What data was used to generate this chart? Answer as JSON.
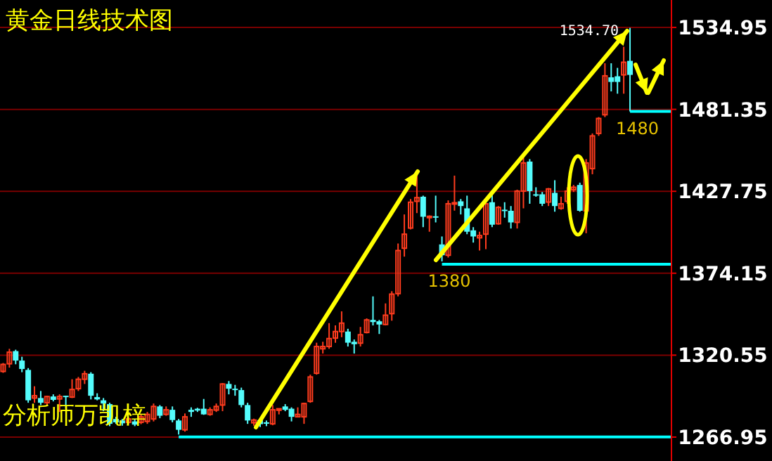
{
  "chart_data": {
    "type": "candlestick",
    "title": "黄金日线技术图",
    "categories": [
      null,
      null,
      null,
      null,
      null,
      null,
      null,
      null,
      null,
      null,
      null,
      null,
      null,
      null,
      null,
      null,
      null,
      null,
      null,
      null,
      null,
      null,
      null,
      null,
      null,
      null,
      null,
      null,
      null,
      null,
      null,
      null,
      null,
      null,
      null,
      null,
      null,
      null,
      null,
      null,
      null,
      null,
      null,
      null,
      null,
      null,
      null,
      null,
      null,
      null,
      null,
      null,
      null,
      null,
      null,
      null,
      null,
      null,
      null,
      null,
      null,
      null,
      null,
      null,
      null,
      null,
      null,
      null,
      null,
      null,
      null,
      null,
      null,
      null,
      null,
      null,
      null,
      null,
      null,
      null,
      null,
      null,
      null,
      null,
      null,
      null,
      null,
      null,
      null,
      null,
      null,
      null,
      null,
      null,
      null,
      null,
      null,
      null,
      null,
      null,
      null,
      null,
      null,
      null,
      null,
      null,
      null
    ],
    "ohlc": [
      [
        1309.9,
        1315.4,
        1309.0,
        1314.5
      ],
      [
        1314.9,
        1324.7,
        1312.4,
        1322.5
      ],
      [
        1323.2,
        1324.1,
        1314.6,
        1317.0
      ],
      [
        1317.0,
        1319.5,
        1309.4,
        1311.5
      ],
      [
        1310.9,
        1312.1,
        1289.4,
        1291.0
      ],
      [
        1292.5,
        1300.2,
        1289.4,
        1294.0
      ],
      [
        1292.5,
        1297.1,
        1287.9,
        1289.4
      ],
      [
        1289.4,
        1294.0,
        1287.9,
        1293.5
      ],
      [
        1293.5,
        1294.9,
        1290.3,
        1291.3
      ],
      [
        1291.9,
        1294.9,
        1283.4,
        1293.5
      ],
      [
        1294.0,
        1294.0,
        1285.5,
        1293.1
      ],
      [
        1293.1,
        1304.8,
        1292.5,
        1298.1
      ],
      [
        1298.6,
        1306.3,
        1297.1,
        1304.8
      ],
      [
        1304.8,
        1310.3,
        1301.7,
        1308.4
      ],
      [
        1308.4,
        1309.4,
        1291.6,
        1294.0
      ],
      [
        1293.1,
        1295.6,
        1291.0,
        1291.6
      ],
      [
        1291.0,
        1292.5,
        1283.9,
        1288.9
      ],
      [
        1288.5,
        1289.4,
        1274.1,
        1275.6
      ],
      [
        1278.8,
        1280.2,
        1275.6,
        1276.6
      ],
      [
        1277.8,
        1278.8,
        1274.4,
        1276.0
      ],
      [
        1276.6,
        1280.0,
        1275.4,
        1278.8
      ],
      [
        1277.2,
        1278.8,
        1274.1,
        1275.1
      ],
      [
        1276.6,
        1281.8,
        1275.4,
        1280.2
      ],
      [
        1277.2,
        1283.4,
        1275.6,
        1281.8
      ],
      [
        1278.8,
        1288.9,
        1277.2,
        1287.0
      ],
      [
        1287.0,
        1287.9,
        1279.3,
        1280.9
      ],
      [
        1281.8,
        1287.0,
        1280.9,
        1284.8
      ],
      [
        1284.8,
        1287.0,
        1276.6,
        1278.1
      ],
      [
        1277.8,
        1278.8,
        1268.6,
        1271.7
      ],
      [
        1271.7,
        1282.4,
        1270.5,
        1280.2
      ],
      [
        1284.8,
        1286.4,
        1280.2,
        1283.4
      ],
      [
        1285.5,
        1286.1,
        1283.4,
        1284.3
      ],
      [
        1285.5,
        1291.9,
        1281.5,
        1281.8
      ],
      [
        1281.8,
        1286.4,
        1280.9,
        1284.8
      ],
      [
        1284.6,
        1288.9,
        1283.4,
        1287.0
      ],
      [
        1287.9,
        1302.3,
        1283.9,
        1301.7
      ],
      [
        1301.7,
        1303.6,
        1294.9,
        1298.6
      ],
      [
        1298.6,
        1301.1,
        1294.0,
        1298.1
      ],
      [
        1297.7,
        1299.3,
        1286.4,
        1287.9
      ],
      [
        1287.9,
        1289.4,
        1275.6,
        1277.8
      ],
      [
        1276.3,
        1279.0,
        1274.4,
        1278.1
      ],
      [
        1278.1,
        1278.8,
        1273.5,
        1275.4
      ],
      [
        1276.6,
        1277.8,
        1274.1,
        1276.0
      ],
      [
        1275.6,
        1287.9,
        1274.7,
        1284.8
      ],
      [
        1284.5,
        1285.5,
        1281.8,
        1285.5
      ],
      [
        1287.0,
        1288.5,
        1283.9,
        1284.8
      ],
      [
        1285.5,
        1286.4,
        1277.2,
        1280.2
      ],
      [
        1280.2,
        1286.4,
        1280.2,
        1281.8
      ],
      [
        1280.2,
        1289.4,
        1275.6,
        1288.9
      ],
      [
        1290.3,
        1307.8,
        1289.4,
        1306.3
      ],
      [
        1308.7,
        1328.7,
        1307.8,
        1326.2
      ],
      [
        1324.7,
        1329.3,
        1321.6,
        1326.2
      ],
      [
        1326.2,
        1341.5,
        1324.7,
        1331.4
      ],
      [
        1331.7,
        1340.0,
        1328.7,
        1336.0
      ],
      [
        1336.0,
        1349.2,
        1332.3,
        1341.5
      ],
      [
        1336.0,
        1337.8,
        1326.2,
        1328.7
      ],
      [
        1329.3,
        1330.8,
        1321.6,
        1327.7
      ],
      [
        1328.4,
        1339.0,
        1326.2,
        1333.9
      ],
      [
        1335.4,
        1344.6,
        1334.8,
        1343.6
      ],
      [
        1343.6,
        1359.0,
        1340.0,
        1342.2
      ],
      [
        1342.7,
        1343.6,
        1334.4,
        1340.6
      ],
      [
        1340.6,
        1354.4,
        1340.0,
        1346.7
      ],
      [
        1347.7,
        1362.4,
        1343.1,
        1360.5
      ],
      [
        1360.8,
        1393.6,
        1359.0,
        1389.0
      ],
      [
        1390.5,
        1412.6,
        1385.0,
        1399.7
      ],
      [
        1403.7,
        1422.7,
        1402.8,
        1420.6
      ],
      [
        1421.2,
        1438.7,
        1413.5,
        1423.6
      ],
      [
        1424.2,
        1424.9,
        1404.3,
        1411.1
      ],
      [
        1410.5,
        1412.0,
        1401.3,
        1411.4
      ],
      [
        1411.4,
        1424.9,
        1407.4,
        1410.5
      ],
      [
        1393.0,
        1398.2,
        1381.9,
        1385.9
      ],
      [
        1385.9,
        1421.8,
        1384.4,
        1419.6
      ],
      [
        1419.6,
        1438.0,
        1415.1,
        1420.3
      ],
      [
        1421.2,
        1422.7,
        1412.6,
        1418.1
      ],
      [
        1416.6,
        1424.9,
        1399.7,
        1401.3
      ],
      [
        1402.2,
        1404.3,
        1394.2,
        1398.2
      ],
      [
        1397.3,
        1401.3,
        1389.0,
        1398.8
      ],
      [
        1399.7,
        1420.3,
        1389.9,
        1419.6
      ],
      [
        1420.6,
        1427.3,
        1404.3,
        1405.9
      ],
      [
        1406.5,
        1418.1,
        1405.9,
        1417.2
      ],
      [
        1415.7,
        1420.6,
        1410.5,
        1415.3
      ],
      [
        1415.0,
        1418.1,
        1403.4,
        1407.4
      ],
      [
        1407.4,
        1428.8,
        1403.4,
        1427.9
      ],
      [
        1427.9,
        1450.9,
        1416.6,
        1446.3
      ],
      [
        1447.2,
        1448.8,
        1419.6,
        1427.9
      ],
      [
        1425.8,
        1430.4,
        1424.2,
        1424.9
      ],
      [
        1425.8,
        1427.3,
        1418.1,
        1419.6
      ],
      [
        1420.7,
        1429.9,
        1418.1,
        1429.3
      ],
      [
        1426.7,
        1435.0,
        1414.4,
        1418.1
      ],
      [
        1416.6,
        1424.2,
        1415.7,
        1419.6
      ],
      [
        1421.2,
        1430.4,
        1419.6,
        1427.9
      ],
      [
        1428.8,
        1431.9,
        1427.3,
        1430.4
      ],
      [
        1431.9,
        1433.4,
        1414.4,
        1415.0
      ],
      [
        1415.0,
        1448.8,
        1400.3,
        1446.3
      ],
      [
        1442.6,
        1465.6,
        1438.9,
        1464.0
      ],
      [
        1465.6,
        1476.3,
        1464.0,
        1475.4
      ],
      [
        1477.8,
        1511.5,
        1476.3,
        1503.3
      ],
      [
        1502.3,
        1511.5,
        1493.1,
        1499.3
      ],
      [
        1503.0,
        1508.5,
        1491.6,
        1499.3
      ],
      [
        1503.9,
        1522.3,
        1491.6,
        1512.2
      ],
      [
        1513.1,
        1534.7,
        1480.0,
        1503.9
      ],
      null,
      null,
      null,
      null,
      null,
      null
    ],
    "ylim": [
      1251.3,
      1552.9
    ],
    "yticks": [
      1266.95,
      1320.55,
      1374.15,
      1427.75,
      1481.35,
      1534.95
    ],
    "grid": "y",
    "ref_lines": [
      {
        "axis": "y",
        "value": 1480,
        "label": "1480",
        "color": "#00ffff"
      },
      {
        "axis": "y",
        "value": 1380,
        "label": "1380",
        "color": "#00ffff"
      },
      {
        "axis": "y",
        "value": 1267,
        "color": "#00ffff"
      }
    ],
    "annotations": [
      "1534.70",
      "分析师万凯梓"
    ]
  }
}
